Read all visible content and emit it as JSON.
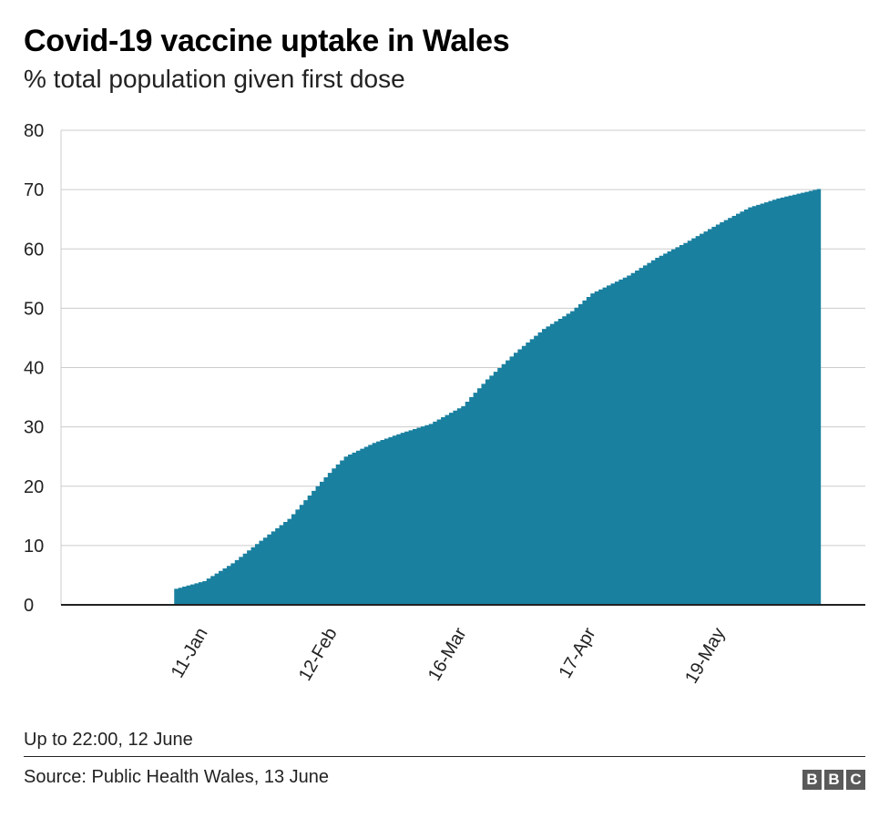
{
  "header": {
    "title": "Covid-19 vaccine uptake in Wales",
    "subtitle": "% total population given first dose"
  },
  "footer": {
    "note": "Up to 22:00, 12 June",
    "source": "Source: Public Health Wales, 13 June",
    "logo_letters": [
      "B",
      "B",
      "C"
    ]
  },
  "colors": {
    "fill": "#1a80a0",
    "grid": "#cccccc",
    "axis": "#222222"
  },
  "chart_data": {
    "type": "area",
    "title": "Covid-19 vaccine uptake in Wales",
    "subtitle": "% total population given first dose",
    "xlabel": "",
    "ylabel": "",
    "x_start": "2020-12-07",
    "x_end": "2021-06-24",
    "data_start": "2021-01-04",
    "data_end": "2021-06-12",
    "ylim": [
      0,
      80
    ],
    "yticks": [
      0,
      10,
      20,
      30,
      40,
      50,
      60,
      70,
      80
    ],
    "xticks": [
      {
        "date": "2021-01-11",
        "label": "11-Jan"
      },
      {
        "date": "2021-02-12",
        "label": "12-Feb"
      },
      {
        "date": "2021-03-16",
        "label": "16-Mar"
      },
      {
        "date": "2021-04-17",
        "label": "17-Apr"
      },
      {
        "date": "2021-05-19",
        "label": "19-May"
      }
    ],
    "grid": true,
    "step": true,
    "points": [
      {
        "x": "2021-01-04",
        "y": 2.7
      },
      {
        "x": "2021-01-11",
        "y": 4.0
      },
      {
        "x": "2021-01-18",
        "y": 7.0
      },
      {
        "x": "2021-01-25",
        "y": 10.8
      },
      {
        "x": "2021-02-01",
        "y": 14.5
      },
      {
        "x": "2021-02-08",
        "y": 20.0
      },
      {
        "x": "2021-02-12",
        "y": 23.0
      },
      {
        "x": "2021-02-15",
        "y": 25.0
      },
      {
        "x": "2021-02-22",
        "y": 27.3
      },
      {
        "x": "2021-03-01",
        "y": 29.0
      },
      {
        "x": "2021-03-08",
        "y": 30.5
      },
      {
        "x": "2021-03-16",
        "y": 33.5
      },
      {
        "x": "2021-03-22",
        "y": 38.0
      },
      {
        "x": "2021-03-29",
        "y": 42.5
      },
      {
        "x": "2021-04-05",
        "y": 46.5
      },
      {
        "x": "2021-04-12",
        "y": 49.5
      },
      {
        "x": "2021-04-17",
        "y": 52.5
      },
      {
        "x": "2021-04-26",
        "y": 55.5
      },
      {
        "x": "2021-05-03",
        "y": 58.5
      },
      {
        "x": "2021-05-10",
        "y": 61.0
      },
      {
        "x": "2021-05-19",
        "y": 64.5
      },
      {
        "x": "2021-05-26",
        "y": 67.0
      },
      {
        "x": "2021-06-02",
        "y": 68.5
      },
      {
        "x": "2021-06-12",
        "y": 70.1
      }
    ]
  }
}
